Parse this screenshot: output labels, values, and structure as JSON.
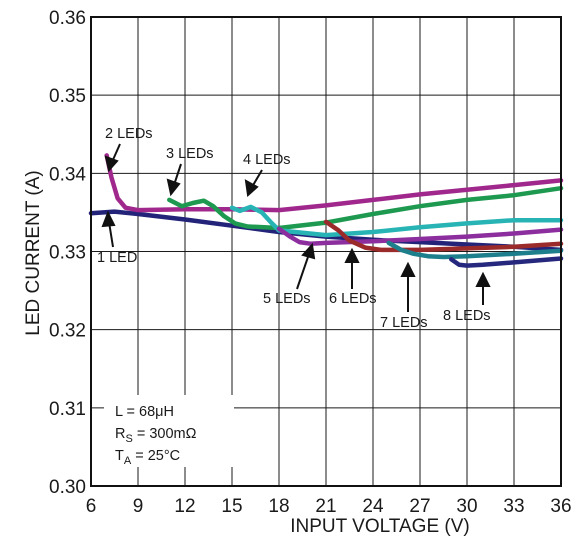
{
  "chart_data": {
    "type": "line",
    "title": "",
    "xlabel": "INPUT VOLTAGE (V)",
    "ylabel": "LED CURRENT (A)",
    "xlim": [
      6,
      36
    ],
    "ylim": [
      0.3,
      0.36
    ],
    "x_ticks": [
      6,
      9,
      12,
      15,
      18,
      21,
      24,
      27,
      30,
      33,
      36
    ],
    "x_tick_labels": [
      "6",
      "9",
      "12",
      "15",
      "18",
      "21",
      "24",
      "27",
      "30",
      "33",
      "36"
    ],
    "y_ticks": [
      0.3,
      0.31,
      0.32,
      0.33,
      0.34,
      0.35,
      0.36
    ],
    "y_tick_labels": [
      "0.30",
      "0.31",
      "0.32",
      "0.33",
      "0.34",
      "0.35",
      "0.36"
    ],
    "grid": true,
    "series": [
      {
        "name": "1 LED",
        "color": "#23237a",
        "x": [
          6,
          7.5,
          9,
          12,
          15,
          18,
          21,
          24,
          27,
          30,
          33,
          36
        ],
        "y": [
          0.3349,
          0.3351,
          0.3348,
          0.3341,
          0.3333,
          0.3325,
          0.3319,
          0.3315,
          0.3312,
          0.3309,
          0.3306,
          0.3302
        ]
      },
      {
        "name": "2 LEDs",
        "color": "#a0288c",
        "x": [
          7,
          7.3,
          7.7,
          8.2,
          9,
          12,
          15,
          18,
          21,
          24,
          27,
          30,
          33,
          36
        ],
        "y": [
          0.3423,
          0.3395,
          0.3368,
          0.3356,
          0.3353,
          0.3354,
          0.3354,
          0.3353,
          0.3359,
          0.3366,
          0.3373,
          0.3379,
          0.3385,
          0.3391
        ]
      },
      {
        "name": "3 LEDs",
        "color": "#1d9950",
        "x": [
          11,
          11.8,
          12.5,
          13.2,
          13.8,
          14.5,
          15.2,
          16,
          18,
          21,
          24,
          27,
          30,
          33,
          36
        ],
        "y": [
          0.3366,
          0.3358,
          0.3362,
          0.3365,
          0.3358,
          0.3345,
          0.3336,
          0.3332,
          0.333,
          0.3337,
          0.3348,
          0.3358,
          0.3366,
          0.3372,
          0.3381
        ]
      },
      {
        "name": "4 LEDs",
        "color": "#28b4b4",
        "x": [
          15,
          15.5,
          16.2,
          16.9,
          17.5,
          18,
          21,
          24,
          27,
          30,
          33,
          36
        ],
        "y": [
          0.3356,
          0.3352,
          0.3357,
          0.335,
          0.3337,
          0.3327,
          0.3321,
          0.3325,
          0.3331,
          0.3336,
          0.334,
          0.334
        ]
      },
      {
        "name": "5 LEDs",
        "color": "#8c2e9e",
        "x": [
          18,
          18.7,
          19.3,
          20,
          21,
          24,
          27,
          30,
          33,
          36
        ],
        "y": [
          0.3329,
          0.3319,
          0.3312,
          0.331,
          0.3311,
          0.3313,
          0.3316,
          0.3319,
          0.3323,
          0.3328
        ]
      },
      {
        "name": "6 LEDs",
        "color": "#9b2b2b",
        "x": [
          21,
          21.8,
          22.5,
          23.5,
          24.5,
          27,
          30,
          33,
          36
        ],
        "y": [
          0.3338,
          0.3327,
          0.3314,
          0.3305,
          0.3302,
          0.3302,
          0.3304,
          0.3306,
          0.331
        ]
      },
      {
        "name": "7 LEDs",
        "color": "#1e7f8c",
        "x": [
          25,
          25.8,
          26.6,
          27.5,
          28.5,
          30,
          33,
          36
        ],
        "y": [
          0.3311,
          0.3302,
          0.3297,
          0.3294,
          0.3293,
          0.3294,
          0.3297,
          0.3301
        ]
      },
      {
        "name": "8 LEDs",
        "color": "#26287e",
        "x": [
          29,
          29.5,
          30,
          31,
          33,
          36
        ],
        "y": [
          0.329,
          0.3283,
          0.3282,
          0.3283,
          0.3286,
          0.3291
        ]
      }
    ],
    "annotations": {
      "L": "L = 68μH",
      "RS_main": "R",
      "RS_sub": "S",
      "RS_rest": " = 300mΩ",
      "TA_main": "T",
      "TA_sub": "A",
      "TA_rest": " = 25°C"
    }
  }
}
